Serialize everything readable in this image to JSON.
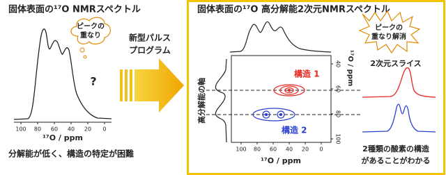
{
  "left_panel": {
    "title": "固体表面の¹⁷O NMRスペクトル",
    "bubble": [
      "ピークの",
      "重なり"
    ],
    "question": "?",
    "x_ticks": [
      100,
      80,
      60,
      40,
      20,
      0
    ],
    "x_label": "¹⁷O / ppm",
    "caption": "分解能が低く、構造の特定が困難"
  },
  "arrow": {
    "label": [
      "新型パルス",
      "プログラム"
    ]
  },
  "right_panel": {
    "title": "固体表面の¹⁷O 高分解能2次元NMRスペクトル",
    "burst": [
      "ピークの",
      "重なり解消"
    ],
    "slice_label": "2次元スライス",
    "structures": [
      "構造 1",
      "構造 2"
    ],
    "y_axis_label": "高分解能の軸",
    "x_ticks": [
      100,
      80,
      60,
      40,
      20,
      0
    ],
    "x_label": "¹⁷O / ppm",
    "y_ticks": [
      40,
      60,
      80,
      100
    ],
    "y_label": "¹⁷O / ppm",
    "caption": [
      "2種類の酸素の構造",
      "があることがわかる"
    ]
  }
}
